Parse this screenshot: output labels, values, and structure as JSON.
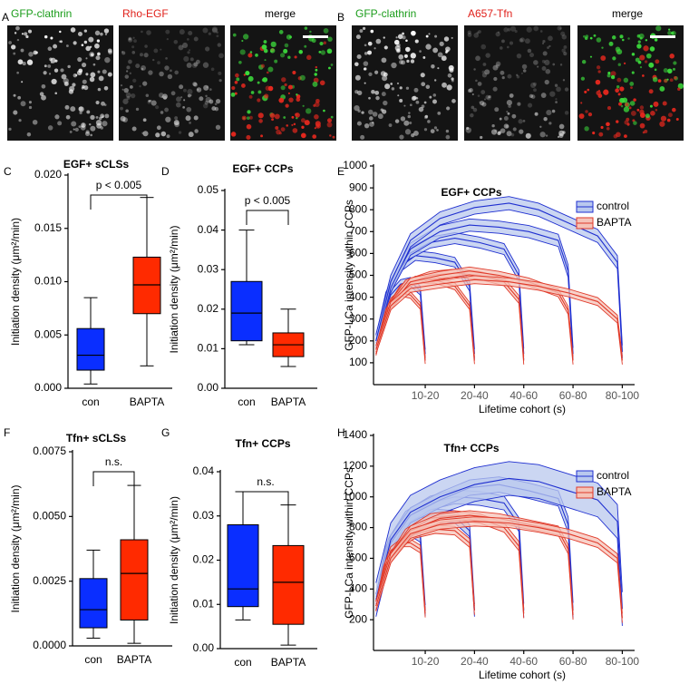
{
  "panel_letters": [
    "A",
    "B",
    "C",
    "D",
    "E",
    "F",
    "G",
    "H"
  ],
  "image_panels": [
    {
      "labels": [
        "GFP-clathrin",
        "Rho-EGF",
        "merge"
      ],
      "label_colors": [
        "#1a9c1a",
        "#e0201a",
        "#000000"
      ]
    },
    {
      "labels": [
        "GFP-clathrin",
        "A657-Tfn",
        "merge"
      ],
      "label_colors": [
        "#1a9c1a",
        "#e0201a",
        "#000000"
      ]
    }
  ],
  "chart_data": [
    {
      "type": "box",
      "title": "EGF+ sCLSs",
      "y_label": "Initiation density (μm²/min)",
      "annotation": "p < 0.005",
      "categories": [
        "con",
        "BAPTA"
      ],
      "boxes": [
        {
          "color": "#0a2eff",
          "whisker_low": 0.0004,
          "q1": 0.0017,
          "median": 0.0031,
          "q3": 0.0056,
          "whisker_high": 0.0085
        },
        {
          "color": "#ff2a00",
          "whisker_low": 0.0021,
          "q1": 0.007,
          "median": 0.0097,
          "q3": 0.0123,
          "whisker_high": 0.0179
        }
      ],
      "ylim": [
        0,
        0.02
      ],
      "yticks": [
        {
          "value": 0,
          "label": "0.000"
        },
        0.005,
        {
          "value": 0.01,
          "label": "0.010"
        },
        0.015,
        {
          "value": 0.02,
          "label": "0.020"
        }
      ]
    },
    {
      "type": "box",
      "title": "EGF+ CCPs",
      "y_label": "Initiation density (μm²/min)",
      "annotation": "p < 0.005",
      "categories": [
        "con",
        "BAPTA"
      ],
      "boxes": [
        {
          "color": "#0a2eff",
          "whisker_low": 0.011,
          "q1": 0.012,
          "median": 0.019,
          "q3": 0.027,
          "whisker_high": 0.04
        },
        {
          "color": "#ff2a00",
          "whisker_low": 0.0055,
          "q1": 0.008,
          "median": 0.011,
          "q3": 0.014,
          "whisker_high": 0.02
        }
      ],
      "ylim": [
        0,
        0.05
      ],
      "yticks": [
        {
          "value": 0,
          "label": "0.00"
        },
        0.01,
        0.02,
        0.03,
        0.04,
        0.05
      ]
    },
    {
      "type": "line",
      "title": "EGF+ CCPs",
      "y_label": "GFP-LCa intensity within CCPs",
      "x_label": "Lifetime cohort (s)",
      "legend": "upper right",
      "xlim": [
        -1,
        105
      ],
      "xticks": [
        {
          "value": 20,
          "label": "10-20"
        },
        {
          "value": 40,
          "label": "20-40"
        },
        {
          "value": 60,
          "label": "40-60"
        },
        {
          "value": 80,
          "label": "60-80"
        },
        {
          "value": 100,
          "label": "80-100"
        }
      ],
      "ylim": [
        0,
        1000
      ],
      "yticks": [
        100,
        200,
        300,
        400,
        500,
        600,
        700,
        800,
        900,
        1000
      ],
      "series": [
        {
          "name": "control",
          "color": "#1f2fd0",
          "band_color": "#b9c8ee",
          "curves": [
            {
              "x": [
                0,
                3,
                6,
                10,
                14,
                18,
                20
              ],
              "values": [
                190,
                320,
                410,
                460,
                470,
                430,
                140
              ],
              "error": 20
            },
            {
              "x": [
                0,
                4,
                10,
                16,
                24,
                32,
                38,
                40
              ],
              "values": [
                200,
                400,
                540,
                590,
                580,
                560,
                450,
                140
              ],
              "error": 22
            },
            {
              "x": [
                0,
                5,
                12,
                22,
                32,
                42,
                52,
                58,
                60
              ],
              "values": [
                200,
                420,
                590,
                650,
                670,
                650,
                620,
                500,
                140
              ],
              "error": 25
            },
            {
              "x": [
                0,
                6,
                14,
                26,
                38,
                50,
                62,
                74,
                78,
                80
              ],
              "values": [
                200,
                450,
                620,
                700,
                730,
                720,
                700,
                660,
                520,
                140
              ],
              "error": 28
            },
            {
              "x": [
                0,
                6,
                14,
                26,
                40,
                54,
                66,
                78,
                90,
                98,
                100
              ],
              "values": [
                200,
                470,
                660,
                760,
                810,
                830,
                800,
                740,
                680,
                560,
                150
              ],
              "error": 30
            }
          ]
        },
        {
          "name": "BAPTA",
          "color": "#e03a2a",
          "band_color": "#f5c3b8",
          "curves": [
            {
              "x": [
                0,
                3,
                6,
                10,
                14,
                18,
                20
              ],
              "values": [
                150,
                290,
                380,
                420,
                410,
                360,
                110
              ],
              "error": 15
            },
            {
              "x": [
                0,
                4,
                10,
                16,
                24,
                32,
                38,
                40
              ],
              "values": [
                150,
                330,
                440,
                480,
                480,
                450,
                360,
                110
              ],
              "error": 16
            },
            {
              "x": [
                0,
                5,
                12,
                22,
                32,
                42,
                52,
                58,
                60
              ],
              "values": [
                160,
                350,
                460,
                500,
                510,
                500,
                470,
                390,
                110
              ],
              "error": 18
            },
            {
              "x": [
                0,
                6,
                14,
                26,
                38,
                50,
                62,
                74,
                78,
                80
              ],
              "values": [
                160,
                360,
                470,
                500,
                520,
                500,
                470,
                420,
                340,
                110
              ],
              "error": 18
            },
            {
              "x": [
                0,
                6,
                14,
                26,
                40,
                54,
                66,
                78,
                90,
                98,
                100
              ],
              "values": [
                160,
                360,
                440,
                460,
                480,
                470,
                450,
                420,
                380,
                300,
                110
              ],
              "error": 18
            }
          ]
        }
      ]
    },
    {
      "type": "box",
      "title": "Tfn+ sCLSs",
      "y_label": "Initiation density (μm²/min)",
      "annotation": "n.s.",
      "categories": [
        "con",
        "BAPTA"
      ],
      "boxes": [
        {
          "color": "#0a2eff",
          "whisker_low": 0.0003,
          "q1": 0.0007,
          "median": 0.0014,
          "q3": 0.0026,
          "whisker_high": 0.0037
        },
        {
          "color": "#ff2a00",
          "whisker_low": 0.0001,
          "q1": 0.001,
          "median": 0.0028,
          "q3": 0.0041,
          "whisker_high": 0.0062
        }
      ],
      "ylim": [
        0,
        0.0075
      ],
      "yticks": [
        {
          "value": 0,
          "label": "0.0000"
        },
        0.0025,
        {
          "value": 0.005,
          "label": "0.0050"
        },
        0.0075
      ]
    },
    {
      "type": "box",
      "title": "Tfn+ CCPs",
      "y_label": "Initiation density (μm²/min)",
      "annotation": "n.s.",
      "categories": [
        "con",
        "BAPTA"
      ],
      "boxes": [
        {
          "color": "#0a2eff",
          "whisker_low": 0.0065,
          "q1": 0.0095,
          "median": 0.0135,
          "q3": 0.028,
          "whisker_high": 0.0355
        },
        {
          "color": "#ff2a00",
          "whisker_low": 0.0008,
          "q1": 0.0055,
          "median": 0.015,
          "q3": 0.0233,
          "whisker_high": 0.0325
        }
      ],
      "ylim": [
        0,
        0.04
      ],
      "yticks": [
        {
          "value": 0,
          "label": "0.00"
        },
        0.01,
        0.02,
        0.03,
        0.04
      ]
    },
    {
      "type": "line",
      "title": "Tfn+ CCPs",
      "y_label": "GFP-LCa intensity within CCPs",
      "x_label": "Lifetime cohort (s)",
      "legend": "upper right",
      "xlim": [
        -1,
        105
      ],
      "xticks": [
        {
          "value": 20,
          "label": "10-20"
        },
        {
          "value": 40,
          "label": "20-40"
        },
        {
          "value": 60,
          "label": "40-60"
        },
        {
          "value": 80,
          "label": "60-80"
        },
        {
          "value": 100,
          "label": "80-100"
        }
      ],
      "ylim": [
        0,
        1400
      ],
      "yticks": [
        200,
        400,
        600,
        800,
        1000,
        1200,
        1400
      ],
      "series": [
        {
          "name": "control",
          "color": "#1f2fd0",
          "band_color": "#b9c8ee",
          "curves": [
            {
              "x": [
                0,
                3,
                6,
                10,
                14,
                18,
                20
              ],
              "values": [
                300,
                560,
                700,
                760,
                780,
                740,
                260
              ],
              "error": 35
            },
            {
              "x": [
                0,
                4,
                10,
                16,
                24,
                32,
                38,
                40
              ],
              "values": [
                310,
                640,
                800,
                860,
                880,
                870,
                780,
                260
              ],
              "error": 40
            },
            {
              "x": [
                0,
                5,
                12,
                22,
                32,
                42,
                52,
                58,
                60
              ],
              "values": [
                320,
                680,
                860,
                960,
                1000,
                990,
                960,
                820,
                260
              ],
              "error": 45
            },
            {
              "x": [
                0,
                6,
                14,
                26,
                38,
                50,
                62,
                74,
                78,
                80
              ],
              "values": [
                320,
                700,
                880,
                980,
                1060,
                1080,
                1040,
                990,
                820,
                260
              ],
              "error": 50
            },
            {
              "x": [
                0,
                6,
                14,
                26,
                40,
                54,
                66,
                78,
                90,
                98,
                100
              ],
              "values": [
                330,
                720,
                900,
                1000,
                1080,
                1120,
                1100,
                1040,
                980,
                840,
                270
              ],
              "error": 110
            }
          ]
        },
        {
          "name": "BAPTA",
          "color": "#e03a2a",
          "band_color": "#f5c3b8",
          "curves": [
            {
              "x": [
                0,
                3,
                6,
                10,
                14,
                18,
                20
              ],
              "values": [
                280,
                520,
                650,
                700,
                700,
                660,
                240
              ],
              "error": 25
            },
            {
              "x": [
                0,
                4,
                10,
                16,
                24,
                32,
                38,
                40
              ],
              "values": [
                290,
                560,
                700,
                760,
                790,
                780,
                700,
                260
              ],
              "error": 28
            },
            {
              "x": [
                0,
                5,
                12,
                22,
                32,
                42,
                52,
                58,
                60
              ],
              "values": [
                290,
                580,
                760,
                860,
                880,
                860,
                800,
                680,
                240
              ],
              "error": 30
            },
            {
              "x": [
                0,
                6,
                14,
                26,
                38,
                50,
                62,
                74,
                78,
                80
              ],
              "values": [
                290,
                600,
                780,
                860,
                880,
                860,
                820,
                780,
                660,
                230
              ],
              "error": 30
            },
            {
              "x": [
                0,
                6,
                14,
                26,
                40,
                54,
                66,
                78,
                90,
                98,
                100
              ],
              "values": [
                290,
                600,
                760,
                820,
                840,
                830,
                800,
                760,
                700,
                600,
                210
              ],
              "error": 30
            }
          ]
        }
      ]
    }
  ]
}
